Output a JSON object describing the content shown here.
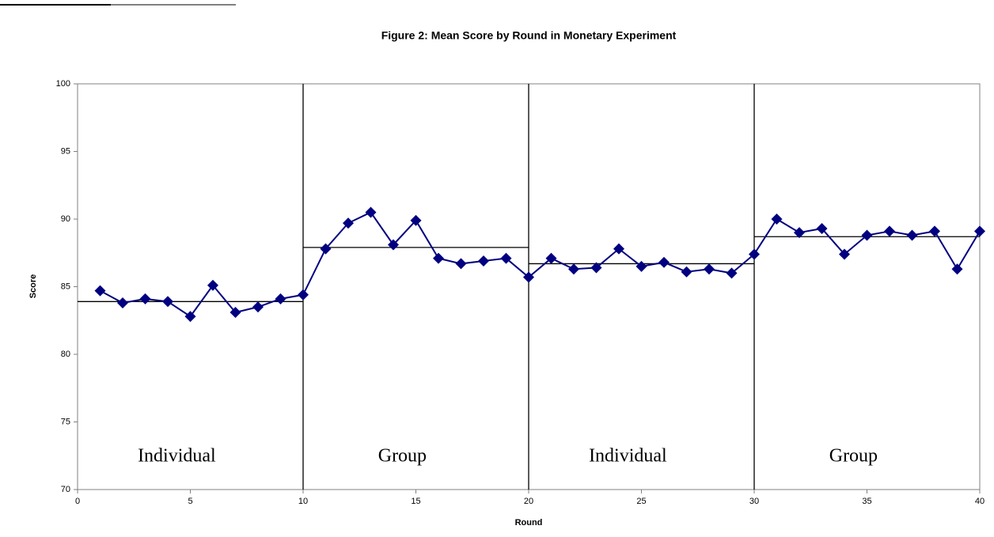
{
  "chart_data": {
    "type": "line",
    "title": "Figure 2: Mean Score by Round in Monetary Experiment",
    "x_label": "Round",
    "y_label": "Score",
    "x": [
      1,
      2,
      3,
      4,
      5,
      6,
      7,
      8,
      9,
      10,
      11,
      12,
      13,
      14,
      15,
      16,
      17,
      18,
      19,
      20,
      21,
      22,
      23,
      24,
      25,
      26,
      27,
      28,
      29,
      30,
      31,
      32,
      33,
      34,
      35,
      36,
      37,
      38,
      39,
      40
    ],
    "values": [
      84.7,
      83.8,
      84.1,
      83.9,
      82.8,
      85.1,
      83.1,
      83.5,
      84.1,
      84.4,
      87.8,
      89.7,
      90.5,
      88.1,
      89.9,
      87.1,
      86.7,
      86.9,
      87.1,
      85.7,
      87.1,
      86.3,
      86.4,
      87.8,
      86.5,
      86.8,
      86.1,
      86.3,
      86.0,
      87.4,
      90.0,
      89.0,
      89.3,
      87.4,
      88.8,
      89.1,
      88.8,
      89.1,
      86.3,
      89.1
    ],
    "color": "#000080",
    "periods": [
      {
        "label": "Individual",
        "start": 0,
        "end": 10,
        "mean": 83.9
      },
      {
        "label": "Group",
        "start": 10,
        "end": 20,
        "mean": 87.9
      },
      {
        "label": "Individual",
        "start": 20,
        "end": 30,
        "mean": 86.7
      },
      {
        "label": "Group",
        "start": 30,
        "end": 40,
        "mean": 88.7
      }
    ],
    "xlim": [
      0,
      40
    ],
    "xticks": [
      0,
      5,
      10,
      15,
      20,
      25,
      30,
      35,
      40
    ],
    "ylim": [
      70,
      100
    ],
    "yticks": [
      70,
      75,
      80,
      85,
      90,
      95,
      100
    ],
    "grid": false
  }
}
